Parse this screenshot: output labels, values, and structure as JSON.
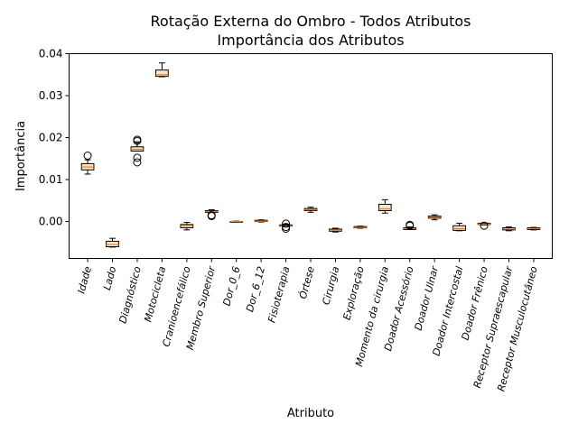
{
  "chart_data": {
    "type": "box",
    "title": "Rotação Externa do Ombro - Todos Atributos",
    "subtitle": "Importância dos Atributos",
    "xlabel": "Atributo",
    "ylabel": "Importância",
    "ylim": [
      -0.0088,
      0.04
    ],
    "yticks": [
      0.0,
      0.01,
      0.02,
      0.03,
      0.04
    ],
    "ytick_labels": [
      "0.00",
      "0.01",
      "0.02",
      "0.03",
      "0.04"
    ],
    "grid": false,
    "median_color": "#ff7f0e",
    "box_fill": "#fde4cd",
    "categories": [
      "Idade",
      "Lado",
      "Diagnóstico",
      "Motocicleta",
      "Cranioencefálico",
      "Membro Superior",
      "Dor_0_6",
      "Dor_6_12",
      "Fisioterapia",
      "Órtese",
      "Cirurgia",
      "Exploração",
      "Momento da cirurgia",
      "Doador Acessório",
      "Doador Ulnar",
      "Doador Intercostal",
      "Doador Frênico",
      "Receptor Supraescapular",
      "Receptor Musculocutâneo"
    ],
    "boxes": [
      {
        "whislo": 0.0113,
        "q1": 0.0123,
        "med": 0.013,
        "q3": 0.0138,
        "whishi": 0.0147,
        "fliers": [
          0.0157
        ]
      },
      {
        "whislo": -0.0061,
        "q1": -0.006,
        "med": -0.0055,
        "q3": -0.0047,
        "whishi": -0.004,
        "fliers": []
      },
      {
        "whislo": 0.0168,
        "q1": 0.0168,
        "med": 0.0172,
        "q3": 0.0178,
        "whishi": 0.019,
        "fliers": [
          0.0141,
          0.0152,
          0.0192,
          0.0195
        ]
      },
      {
        "whislo": 0.0345,
        "q1": 0.0346,
        "med": 0.035,
        "q3": 0.0361,
        "whishi": 0.0378,
        "fliers": []
      },
      {
        "whislo": -0.002,
        "q1": -0.0015,
        "med": -0.001,
        "q3": -0.0007,
        "whishi": -0.0002,
        "fliers": []
      },
      {
        "whislo": 0.0022,
        "q1": 0.0022,
        "med": 0.0024,
        "q3": 0.0026,
        "whishi": 0.0028,
        "fliers": [
          0.0013,
          0.0015
        ]
      },
      {
        "whislo": -0.0001,
        "q1": -0.0001,
        "med": 0.0,
        "q3": 0.0,
        "whishi": 0.0001,
        "fliers": []
      },
      {
        "whislo": -0.0001,
        "q1": 0.0,
        "med": 0.0001,
        "q3": 0.0003,
        "whishi": 0.0004,
        "fliers": []
      },
      {
        "whislo": -0.0011,
        "q1": -0.0011,
        "med": -0.001,
        "q3": -0.0008,
        "whishi": -0.0006,
        "fliers": [
          -0.0005,
          -0.0013,
          -0.0017
        ]
      },
      {
        "whislo": 0.0022,
        "q1": 0.0026,
        "med": 0.0028,
        "q3": 0.0031,
        "whishi": 0.0034,
        "fliers": []
      },
      {
        "whislo": -0.0025,
        "q1": -0.0023,
        "med": -0.0021,
        "q3": -0.0018,
        "whishi": -0.0016,
        "fliers": []
      },
      {
        "whislo": -0.0016,
        "q1": -0.0015,
        "med": -0.0014,
        "q3": -0.0012,
        "whishi": -0.0011,
        "fliers": []
      },
      {
        "whislo": 0.002,
        "q1": 0.0026,
        "med": 0.003,
        "q3": 0.0041,
        "whishi": 0.0052,
        "fliers": []
      },
      {
        "whislo": -0.0019,
        "q1": -0.0019,
        "med": -0.0017,
        "q3": -0.0015,
        "whishi": -0.0013,
        "fliers": [
          -0.001,
          -0.0008
        ]
      },
      {
        "whislo": 0.0004,
        "q1": 0.0008,
        "med": 0.0011,
        "q3": 0.0013,
        "whishi": 0.0016,
        "fliers": []
      },
      {
        "whislo": -0.0022,
        "q1": -0.0021,
        "med": -0.0017,
        "q3": -0.001,
        "whishi": -0.0004,
        "fliers": []
      },
      {
        "whislo": -0.0008,
        "q1": -0.0007,
        "med": -0.0006,
        "q3": -0.0004,
        "whishi": -0.0003,
        "fliers": [
          -0.001
        ]
      },
      {
        "whislo": -0.0022,
        "q1": -0.002,
        "med": -0.0018,
        "q3": -0.0015,
        "whishi": -0.0013,
        "fliers": []
      },
      {
        "whislo": -0.002,
        "q1": -0.0019,
        "med": -0.0017,
        "q3": -0.0015,
        "whishi": -0.0014,
        "fliers": []
      }
    ]
  }
}
